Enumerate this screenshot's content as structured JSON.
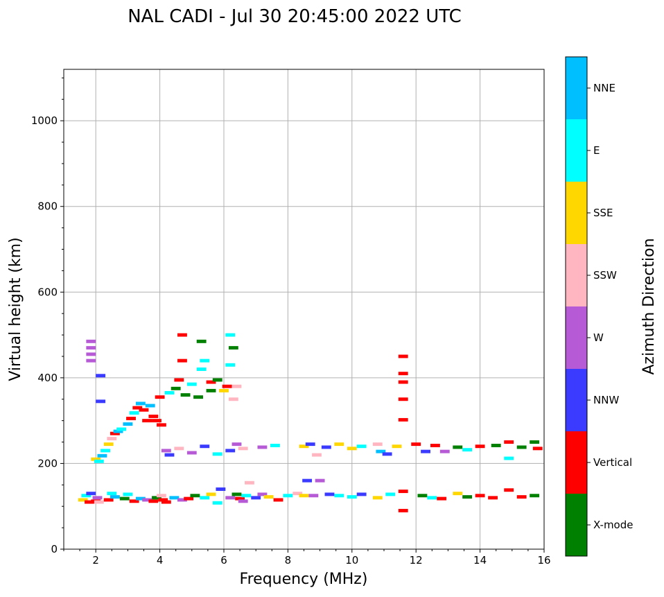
{
  "chart_data": {
    "type": "scatter",
    "title": "NAL CADI - Jul 30 20:45:00 2022 UTC",
    "xlabel": "Frequency (MHz)",
    "ylabel": "Virtual height (km)",
    "xlim": [
      1,
      16
    ],
    "ylim": [
      0,
      1120
    ],
    "xticks": [
      2,
      4,
      6,
      8,
      10,
      12,
      14,
      16
    ],
    "yticks": [
      0,
      200,
      400,
      600,
      800,
      1000
    ],
    "grid": true,
    "colorbar": {
      "label": "Azimuth Direction",
      "categories": [
        "X-mode",
        "Vertical",
        "NNW",
        "W",
        "SSW",
        "SSE",
        "E",
        "NNE"
      ],
      "colors": [
        "#008000",
        "#ff0000",
        "#3b3bff",
        "#b65ad6",
        "#ffb6c1",
        "#ffd700",
        "#00ffff",
        "#00bfff"
      ]
    },
    "point_format": [
      "frequency_MHz",
      "virtual_height_km",
      "category_index"
    ],
    "points": [
      [
        1.6,
        115,
        5
      ],
      [
        1.7,
        125,
        6
      ],
      [
        1.8,
        110,
        1
      ],
      [
        1.85,
        130,
        2
      ],
      [
        2.0,
        112,
        1
      ],
      [
        2.05,
        120,
        3
      ],
      [
        2.1,
        110,
        4
      ],
      [
        2.4,
        115,
        1
      ],
      [
        2.5,
        130,
        6
      ],
      [
        2.6,
        122,
        7
      ],
      [
        2.9,
        118,
        0
      ],
      [
        3.0,
        128,
        6
      ],
      [
        3.2,
        112,
        1
      ],
      [
        3.4,
        118,
        7
      ],
      [
        3.6,
        115,
        3
      ],
      [
        3.8,
        112,
        1
      ],
      [
        3.9,
        120,
        0
      ],
      [
        4.05,
        125,
        4
      ],
      [
        4.1,
        115,
        1
      ],
      [
        4.2,
        110,
        1
      ],
      [
        4.45,
        120,
        7
      ],
      [
        4.7,
        115,
        3
      ],
      [
        4.9,
        118,
        1
      ],
      [
        5.1,
        125,
        0
      ],
      [
        5.4,
        120,
        6
      ],
      [
        5.6,
        128,
        5
      ],
      [
        5.8,
        108,
        6
      ],
      [
        5.9,
        140,
        2
      ],
      [
        6.2,
        120,
        3
      ],
      [
        6.4,
        128,
        0
      ],
      [
        6.5,
        118,
        1
      ],
      [
        6.6,
        112,
        3
      ],
      [
        6.7,
        125,
        6
      ],
      [
        6.8,
        155,
        4
      ],
      [
        7.0,
        120,
        2
      ],
      [
        7.2,
        128,
        3
      ],
      [
        7.4,
        122,
        5
      ],
      [
        7.7,
        115,
        1
      ],
      [
        8.0,
        125,
        6
      ],
      [
        8.3,
        130,
        4
      ],
      [
        8.5,
        125,
        5
      ],
      [
        8.6,
        160,
        2
      ],
      [
        8.8,
        125,
        3
      ],
      [
        9.0,
        160,
        3
      ],
      [
        9.3,
        128,
        2
      ],
      [
        9.6,
        125,
        6
      ],
      [
        10.0,
        122,
        6
      ],
      [
        10.3,
        128,
        2
      ],
      [
        10.8,
        120,
        5
      ],
      [
        11.2,
        128,
        6
      ],
      [
        11.6,
        135,
        1
      ],
      [
        11.6,
        90,
        1
      ],
      [
        12.2,
        125,
        0
      ],
      [
        12.5,
        120,
        6
      ],
      [
        12.8,
        118,
        1
      ],
      [
        13.3,
        130,
        5
      ],
      [
        13.6,
        122,
        0
      ],
      [
        14.0,
        125,
        1
      ],
      [
        14.4,
        120,
        1
      ],
      [
        14.9,
        138,
        1
      ],
      [
        15.3,
        122,
        1
      ],
      [
        15.7,
        125,
        0
      ],
      [
        4.2,
        230,
        3
      ],
      [
        4.3,
        220,
        2
      ],
      [
        4.6,
        235,
        4
      ],
      [
        5.0,
        225,
        3
      ],
      [
        5.4,
        240,
        2
      ],
      [
        5.8,
        222,
        6
      ],
      [
        6.2,
        230,
        2
      ],
      [
        6.4,
        245,
        3
      ],
      [
        6.6,
        235,
        4
      ],
      [
        7.2,
        238,
        3
      ],
      [
        7.6,
        242,
        6
      ],
      [
        8.5,
        240,
        5
      ],
      [
        8.7,
        245,
        2
      ],
      [
        8.9,
        220,
        4
      ],
      [
        9.2,
        238,
        2
      ],
      [
        9.6,
        245,
        5
      ],
      [
        10.0,
        235,
        5
      ],
      [
        10.3,
        240,
        6
      ],
      [
        10.8,
        245,
        4
      ],
      [
        10.9,
        228,
        7
      ],
      [
        11.1,
        222,
        2
      ],
      [
        11.4,
        240,
        5
      ],
      [
        12.0,
        245,
        1
      ],
      [
        12.3,
        228,
        2
      ],
      [
        12.6,
        242,
        1
      ],
      [
        12.9,
        228,
        3
      ],
      [
        13.3,
        238,
        0
      ],
      [
        13.6,
        232,
        6
      ],
      [
        14.0,
        240,
        1
      ],
      [
        14.5,
        242,
        0
      ],
      [
        14.9,
        250,
        1
      ],
      [
        14.9,
        212,
        6
      ],
      [
        15.3,
        238,
        0
      ],
      [
        15.7,
        250,
        0
      ],
      [
        15.8,
        235,
        1
      ],
      [
        2.0,
        210,
        5
      ],
      [
        2.1,
        205,
        6
      ],
      [
        2.2,
        218,
        7
      ],
      [
        2.3,
        230,
        6
      ],
      [
        2.4,
        245,
        5
      ],
      [
        2.5,
        258,
        4
      ],
      [
        2.6,
        270,
        1
      ],
      [
        2.7,
        275,
        7
      ],
      [
        2.8,
        280,
        6
      ],
      [
        3.0,
        292,
        7
      ],
      [
        3.1,
        305,
        1
      ],
      [
        3.2,
        318,
        6
      ],
      [
        3.3,
        330,
        1
      ],
      [
        3.4,
        340,
        7
      ],
      [
        3.5,
        325,
        1
      ],
      [
        3.6,
        300,
        1
      ],
      [
        3.7,
        335,
        7
      ],
      [
        3.8,
        310,
        1
      ],
      [
        3.9,
        300,
        1
      ],
      [
        4.0,
        355,
        1
      ],
      [
        4.05,
        290,
        1
      ],
      [
        4.3,
        365,
        6
      ],
      [
        4.5,
        375,
        0
      ],
      [
        4.6,
        395,
        1
      ],
      [
        4.7,
        440,
        1
      ],
      [
        4.7,
        500,
        1
      ],
      [
        4.8,
        360,
        0
      ],
      [
        5.0,
        385,
        6
      ],
      [
        5.2,
        355,
        0
      ],
      [
        5.3,
        420,
        6
      ],
      [
        5.3,
        485,
        0
      ],
      [
        5.4,
        440,
        6
      ],
      [
        5.6,
        370,
        0
      ],
      [
        5.6,
        390,
        1
      ],
      [
        5.8,
        395,
        0
      ],
      [
        6.0,
        370,
        5
      ],
      [
        6.1,
        380,
        1
      ],
      [
        6.2,
        430,
        6
      ],
      [
        6.2,
        500,
        6
      ],
      [
        6.3,
        470,
        0
      ],
      [
        6.3,
        350,
        4
      ],
      [
        6.4,
        380,
        4
      ],
      [
        1.85,
        440,
        3
      ],
      [
        1.85,
        455,
        3
      ],
      [
        1.85,
        470,
        3
      ],
      [
        1.85,
        485,
        3
      ],
      [
        2.15,
        405,
        2
      ],
      [
        2.15,
        345,
        2
      ],
      [
        11.6,
        450,
        1
      ],
      [
        11.6,
        410,
        1
      ],
      [
        11.6,
        390,
        1
      ],
      [
        11.6,
        350,
        1
      ],
      [
        11.6,
        302,
        1
      ]
    ]
  }
}
